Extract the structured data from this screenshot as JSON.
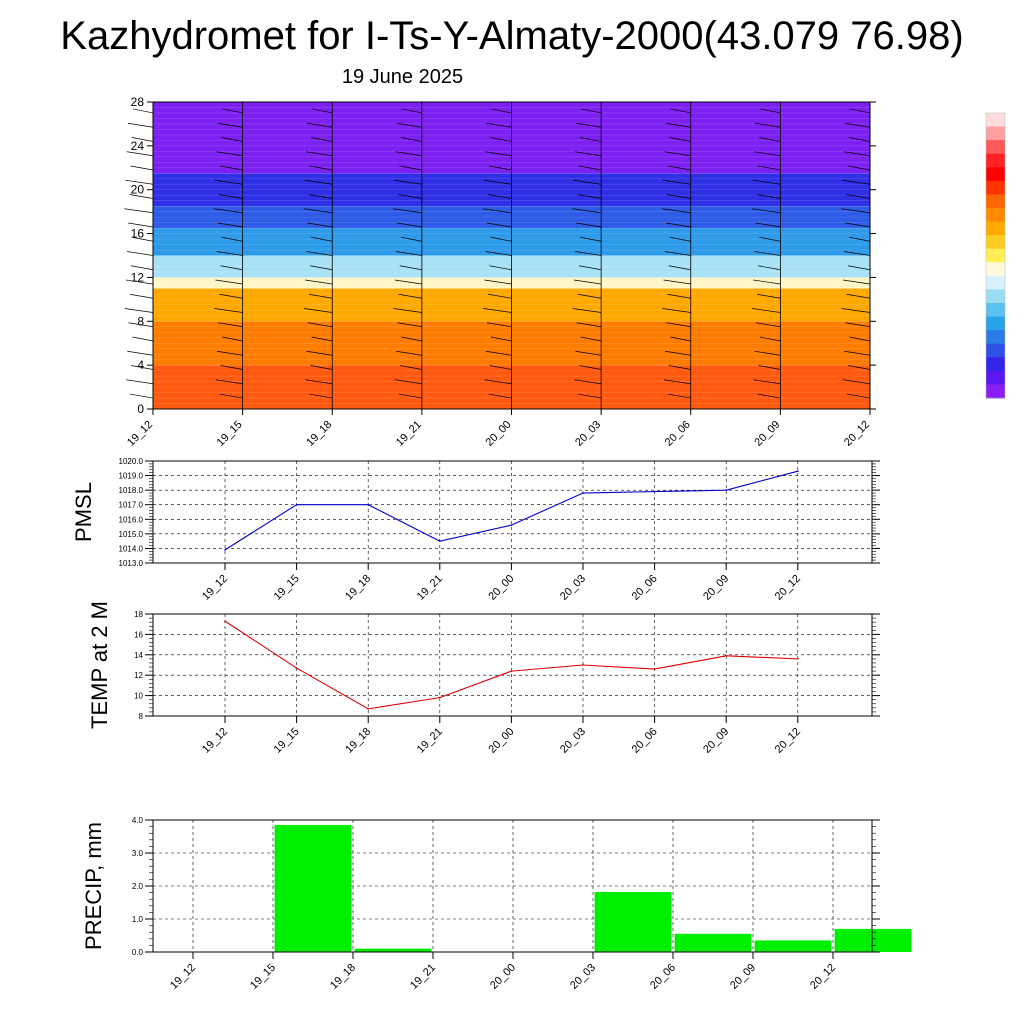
{
  "header": {
    "title": "Kazhydromet for I-Ts-Y-Almaty-2000(43.079 76.98)",
    "subtitle": "19 June 2025"
  },
  "colorbar": {
    "colors": [
      "#ffdcdc",
      "#ff9e9e",
      "#ff5a5a",
      "#ff2222",
      "#ff0000",
      "#ff3300",
      "#ff6600",
      "#ff8a00",
      "#ffaa00",
      "#ffcc22",
      "#ffee55",
      "#fffadd",
      "#d8f1fb",
      "#9bdcf5",
      "#5ac2f0",
      "#2aa3eb",
      "#2a7ce6",
      "#2f50e6",
      "#3426e8",
      "#5a18ee",
      "#8a1ef0"
    ]
  },
  "chart_data": [
    {
      "type": "heatmap",
      "name": "cross-section",
      "x": [
        "19_12",
        "19_15",
        "19_18",
        "19_21",
        "20_00",
        "20_03",
        "20_06",
        "20_09",
        "20_12"
      ],
      "ylim": [
        0,
        28
      ],
      "yticks": [
        0,
        4,
        8,
        12,
        16,
        20,
        24,
        28
      ],
      "layers": [
        {
          "from": 0,
          "to": 4,
          "color": "#ff5a10"
        },
        {
          "from": 4,
          "to": 8,
          "color": "#ff7c00"
        },
        {
          "from": 8,
          "to": 11,
          "color": "#ffa800"
        },
        {
          "from": 11,
          "to": 12,
          "color": "#fff6c8"
        },
        {
          "from": 12,
          "to": 14,
          "color": "#a8e2f7"
        },
        {
          "from": 14,
          "to": 16.5,
          "color": "#2e9aea"
        },
        {
          "from": 16.5,
          "to": 18.5,
          "color": "#2f5ce6"
        },
        {
          "from": 18.5,
          "to": 21.5,
          "color": "#2f2fe6"
        },
        {
          "from": 21.5,
          "to": 28,
          "color": "#7d20f2"
        }
      ],
      "grid": false
    },
    {
      "type": "line",
      "ylabel": "PMSL",
      "x": [
        "19_12",
        "19_15",
        "19_18",
        "19_21",
        "20_00",
        "20_03",
        "20_06",
        "20_09",
        "20_12"
      ],
      "values": [
        1013.9,
        1017.0,
        1017.0,
        1014.5,
        1015.6,
        1017.8,
        1017.9,
        1018.0,
        1019.3
      ],
      "ylim": [
        1013.0,
        1020.0
      ],
      "yticks": [
        "1013.0",
        "1014.0",
        "1015.0",
        "1016.0",
        "1017.0",
        "1018.0",
        "1019.0",
        "1020.0"
      ],
      "color": "#0000cc",
      "grid": true
    },
    {
      "type": "line",
      "ylabel": "TEMP at 2 M",
      "x": [
        "19_12",
        "19_15",
        "19_18",
        "19_21",
        "20_00",
        "20_03",
        "20_06",
        "20_09",
        "20_12"
      ],
      "values": [
        17.3,
        12.7,
        8.7,
        9.8,
        12.4,
        13.0,
        12.6,
        13.9,
        13.6
      ],
      "ylim": [
        8,
        18
      ],
      "yticks": [
        "8",
        "10",
        "12",
        "14",
        "16",
        "18"
      ],
      "color": "#e00000",
      "grid": true
    },
    {
      "type": "bar",
      "ylabel": "PRECIP, mm",
      "categories": [
        "19_12",
        "19_15",
        "19_18",
        "19_21",
        "20_00",
        "20_03",
        "20_06",
        "20_09",
        "20_12"
      ],
      "values": [
        0.0,
        3.85,
        0.1,
        0.0,
        0.0,
        1.82,
        0.55,
        0.35,
        0.7
      ],
      "ylim": [
        0.0,
        4.0
      ],
      "yticks": [
        "0.0",
        "1.0",
        "2.0",
        "3.0",
        "4.0"
      ],
      "color": "#00ee00",
      "grid": true
    }
  ]
}
